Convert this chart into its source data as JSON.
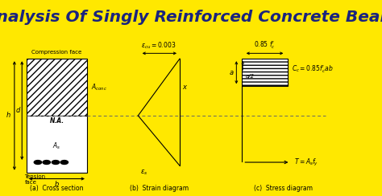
{
  "title": "Analysis Of Singly Reinforced Concrete Beam",
  "title_bg": "#FFE800",
  "title_color": "#1a237e",
  "bg_color": "white",
  "label_a": "(a)  Cross section",
  "label_b": "(b)  Strain diagram",
  "label_c": "(c)  Stress diagram",
  "line_color": "black",
  "cc_label": "$C_c = 0.85f_c^{\\prime}ab$",
  "t_label": "$T = A_s f_y$",
  "aconc_label": "$A_{conc}$",
  "as_label": "$A_s$",
  "ecu_label": "$\\epsilon_{cu} = 0.003$",
  "es_label": "$\\epsilon_s$",
  "fc_label": "$0.85\\ f^{\\prime}_c$"
}
